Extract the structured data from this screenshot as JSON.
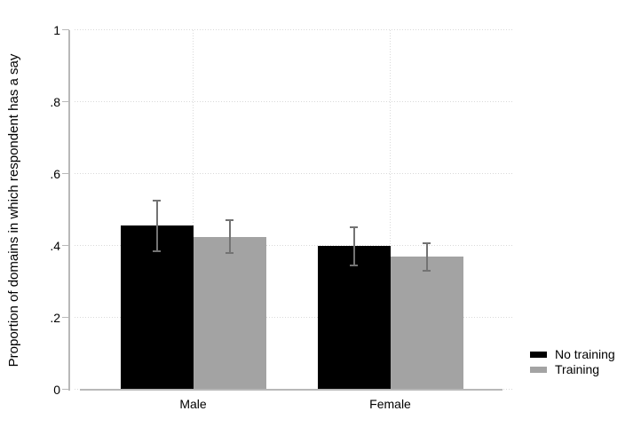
{
  "chart_data": {
    "type": "bar",
    "title": "",
    "xlabel": "",
    "ylabel": "Proportion of domains in which respondent has a say",
    "categories": [
      "Male",
      "Female"
    ],
    "series": [
      {
        "name": "No training",
        "color": "#000000",
        "values": [
          0.455,
          0.398
        ],
        "ci_low": [
          0.385,
          0.345
        ],
        "ci_high": [
          0.525,
          0.45
        ]
      },
      {
        "name": "Training",
        "color": "#a3a3a3",
        "values": [
          0.423,
          0.368
        ],
        "ci_low": [
          0.38,
          0.33
        ],
        "ci_high": [
          0.47,
          0.405
        ]
      }
    ],
    "ylim": [
      0,
      1
    ],
    "yticks": [
      0,
      0.2,
      0.4,
      0.6,
      0.8,
      1
    ],
    "ytick_labels": [
      "0",
      ".2",
      ".4",
      ".6",
      ".8",
      "1"
    ],
    "grid": true,
    "grid_style": "dotted",
    "legend_position": "bottom-right",
    "error_bars": true,
    "error_bar_color": "#737373",
    "axis_color": "#b8b8b8",
    "grid_color": "#d9d9d9",
    "background_color": "#ffffff"
  }
}
